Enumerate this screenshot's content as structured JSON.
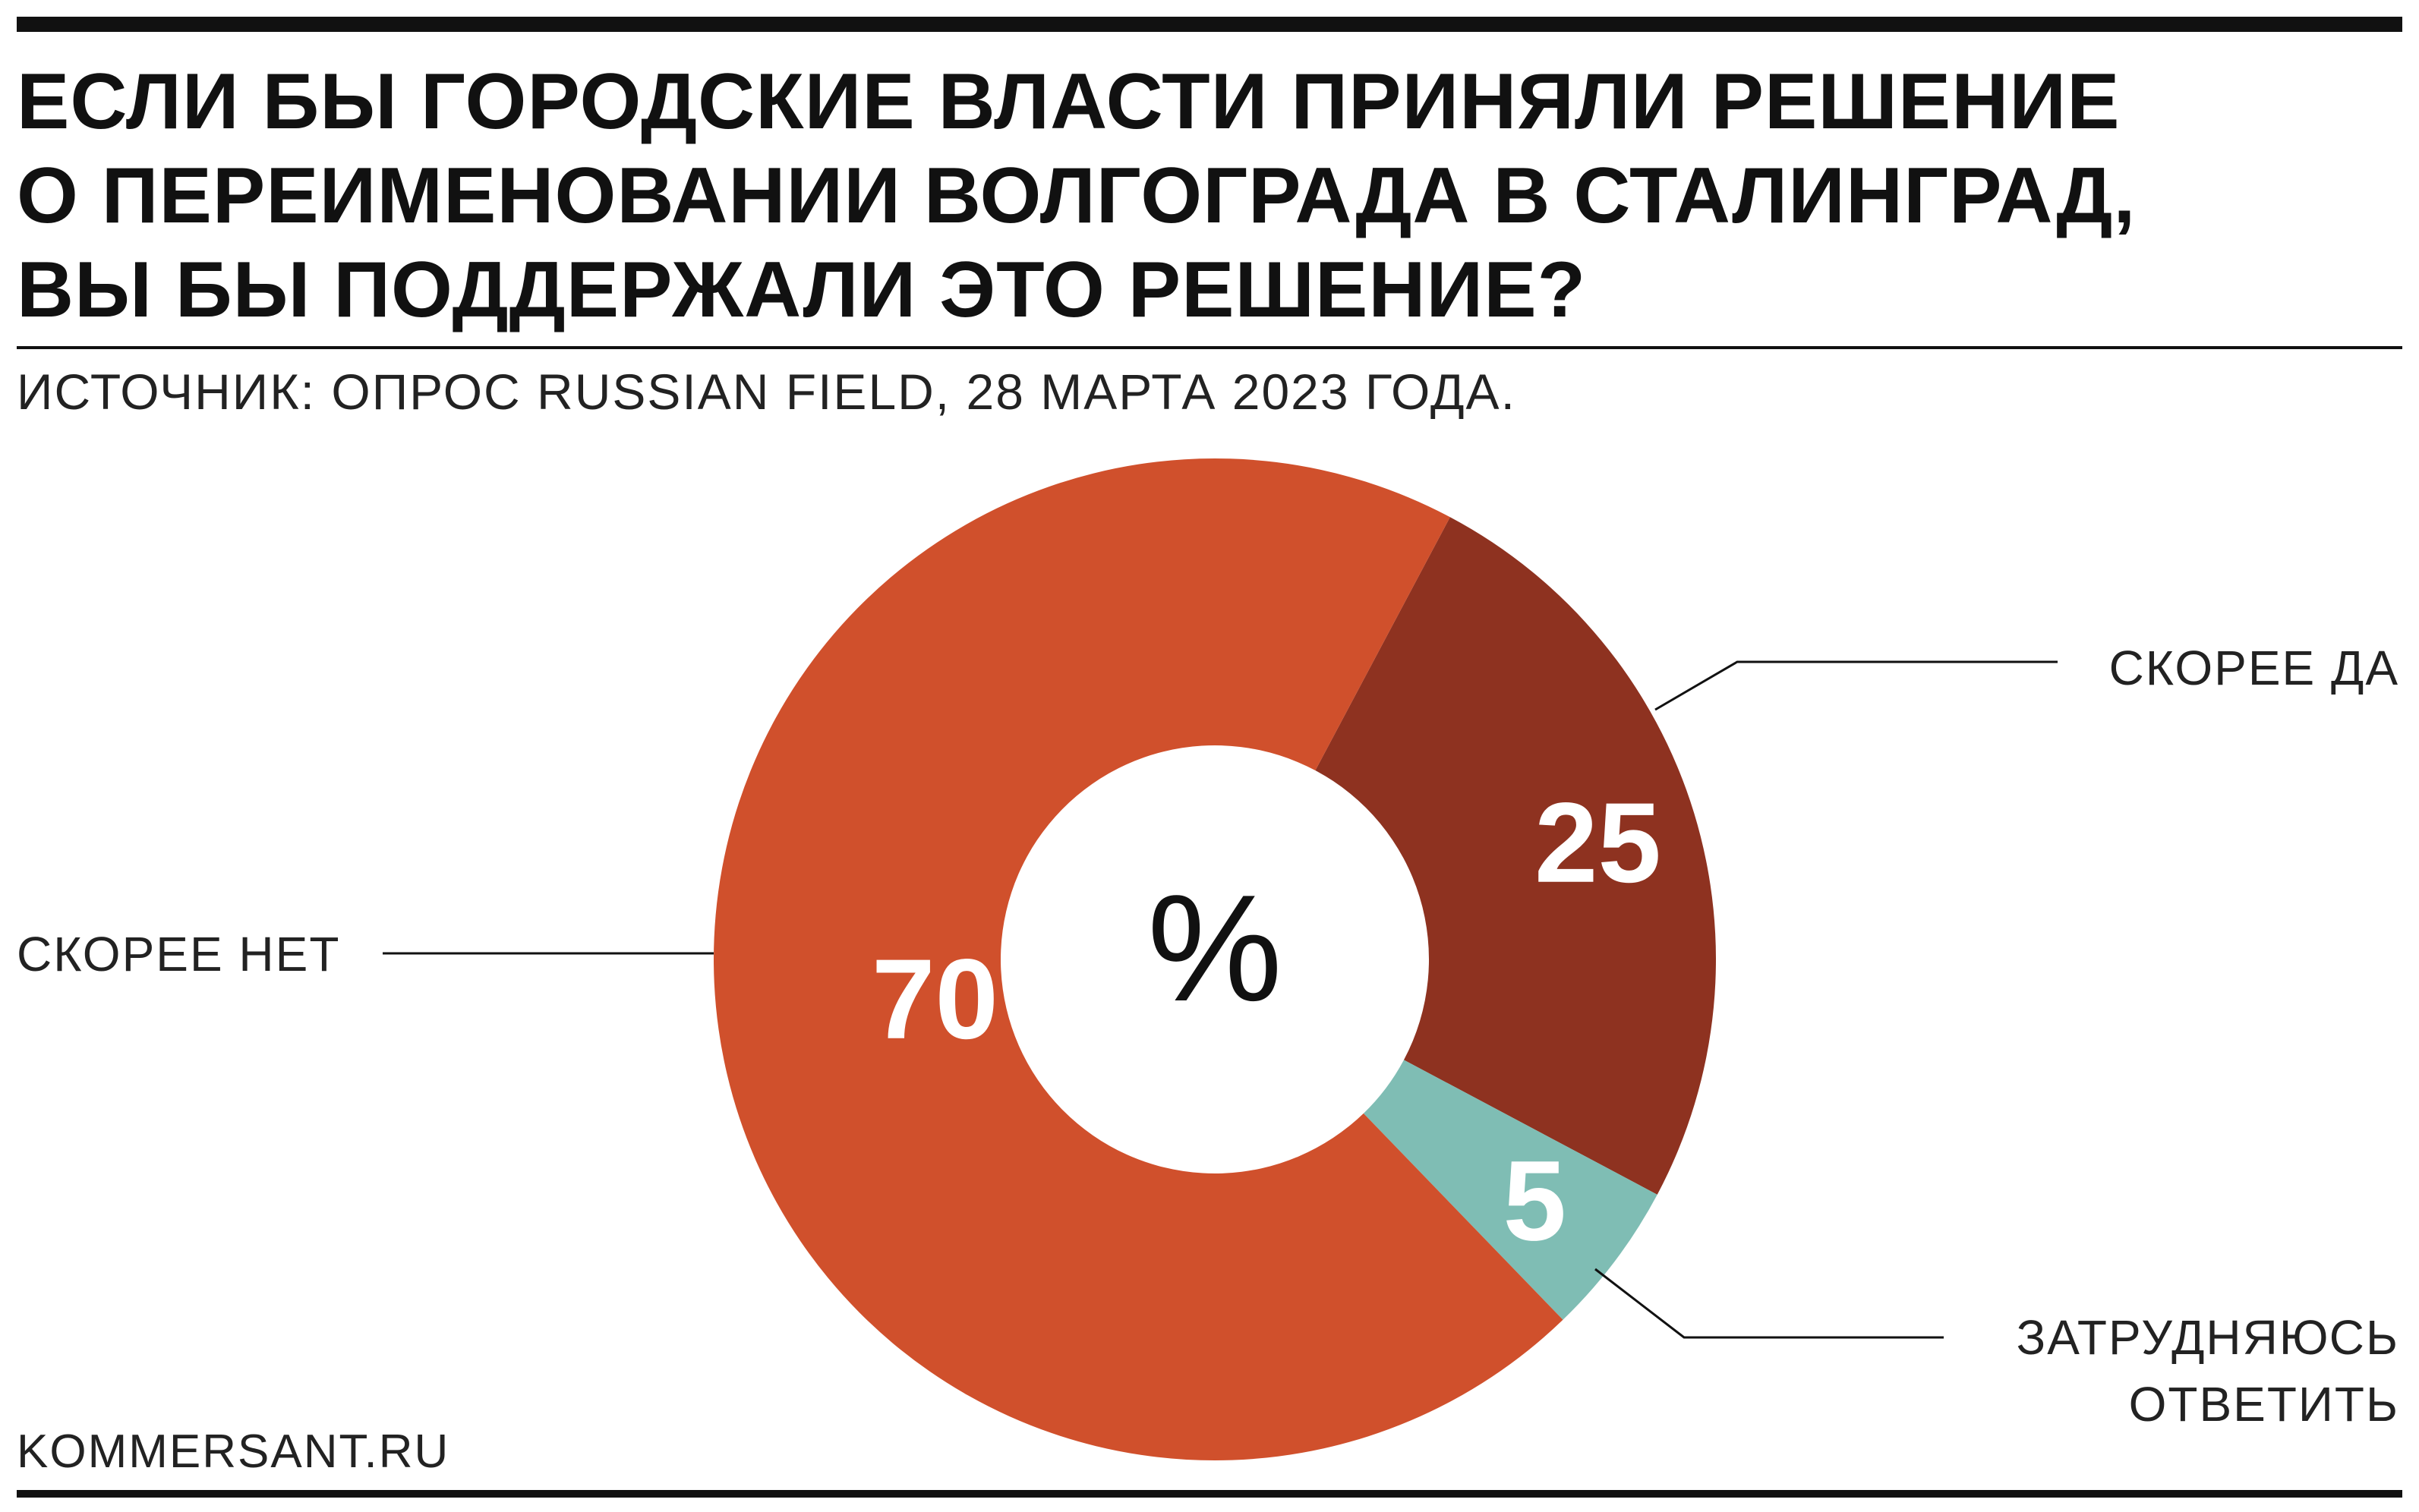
{
  "title_lines": [
    "ЕСЛИ БЫ ГОРОДСКИЕ ВЛАСТИ ПРИНЯЛИ РЕШЕНИЕ",
    "О ПЕРЕИМЕНОВАНИИ ВОЛГОГРАДА В СТАЛИНГРАД,",
    "ВЫ БЫ ПОДДЕРЖАЛИ ЭТО РЕШЕНИЕ?"
  ],
  "source": "ИСТОЧНИК: ОПРОС RUSSIAN FIELD, 28 МАРТА 2023 ГОДА.",
  "credit": "KOMMERSANT.RU",
  "chart_data": {
    "type": "pie",
    "donut": true,
    "center_label": "%",
    "slices": [
      {
        "label": "СКОРЕЕ ДА",
        "label_lines": [
          "СКОРЕЕ ДА"
        ],
        "value": 25,
        "value_text": "25",
        "color": "#8e3220"
      },
      {
        "label": "ЗАТРУДНЯЮСЬ ОТВЕТИТЬ",
        "label_lines": [
          "ЗАТРУДНЯЮСЬ",
          "ОТВЕТИТЬ"
        ],
        "value": 5,
        "value_text": "5",
        "color": "#7fbdb4"
      },
      {
        "label": "СКОРЕЕ НЕТ",
        "label_lines": [
          "СКОРЕЕ НЕТ"
        ],
        "value": 70,
        "value_text": "70",
        "color": "#d0502c"
      }
    ]
  }
}
